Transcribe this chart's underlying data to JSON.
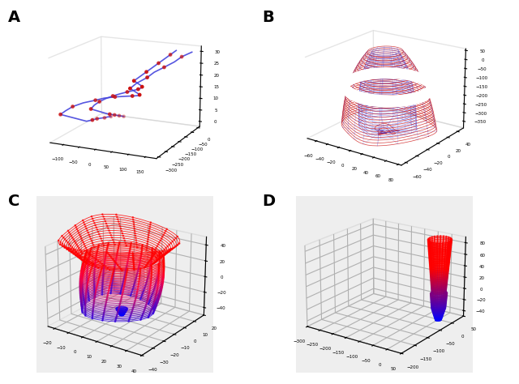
{
  "panel_labels": [
    "A",
    "B",
    "C",
    "D"
  ],
  "label_fontsize": 14,
  "label_fontweight": "bold",
  "blue_color": "#4444DD",
  "red_color": "#CC1111",
  "background_color": "#FFFFFF",
  "panel_A": {
    "elev": 15,
    "azim": -65,
    "tick_fontsize": 4
  },
  "panel_B": {
    "elev": 20,
    "azim": -55,
    "tick_fontsize": 4
  },
  "panel_C": {
    "elev": 22,
    "azim": -55,
    "tick_fontsize": 4,
    "xlim": [
      -25,
      40
    ],
    "ylim": [
      -40,
      20
    ],
    "zlim": [
      -50,
      50
    ]
  },
  "panel_D": {
    "elev": 20,
    "azim": -55,
    "tick_fontsize": 4,
    "xlim": [
      -300,
      50
    ],
    "ylim": [
      -200,
      50
    ],
    "zlim": [
      -50,
      90
    ]
  }
}
